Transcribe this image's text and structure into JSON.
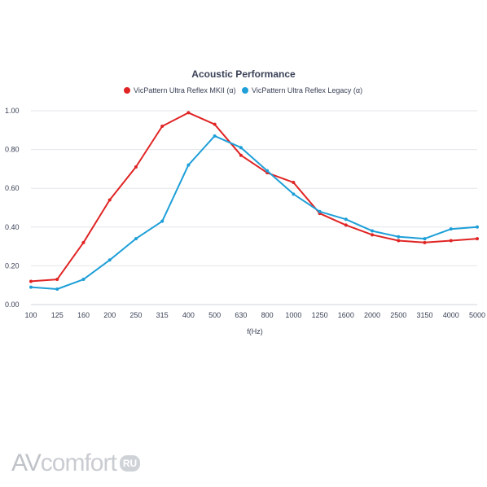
{
  "chart_data": {
    "type": "line",
    "title": "Acoustic Performance",
    "xlabel": "f(Hz)",
    "ylabel": "",
    "categories": [
      "100",
      "125",
      "160",
      "200",
      "250",
      "315",
      "400",
      "500",
      "630",
      "800",
      "1000",
      "1250",
      "1600",
      "2000",
      "2500",
      "3150",
      "4000",
      "5000"
    ],
    "ylim": [
      0,
      1.0
    ],
    "yticks": [
      "0.00",
      "0.20",
      "0.40",
      "0.60",
      "0.80",
      "1.00"
    ],
    "grid": true,
    "legend_position": "top",
    "series": [
      {
        "name": "VicPattern Ultra Reflex MKII (α)",
        "color": "#e02424",
        "values": [
          0.12,
          0.13,
          0.32,
          0.54,
          0.71,
          0.92,
          0.99,
          0.93,
          0.77,
          0.68,
          0.63,
          0.47,
          0.41,
          0.36,
          0.33,
          0.32,
          0.33,
          0.34
        ]
      },
      {
        "name": "VicPattern Ultra Reflex Legacy (α)",
        "color": "#1e9fd8",
        "values": [
          0.09,
          0.08,
          0.13,
          0.23,
          0.34,
          0.43,
          0.72,
          0.87,
          0.81,
          0.69,
          0.57,
          0.48,
          0.44,
          0.38,
          0.35,
          0.34,
          0.39,
          0.4
        ]
      }
    ]
  },
  "watermark": {
    "av": "AV",
    "comfort": "comfort",
    "ru": "RU"
  }
}
